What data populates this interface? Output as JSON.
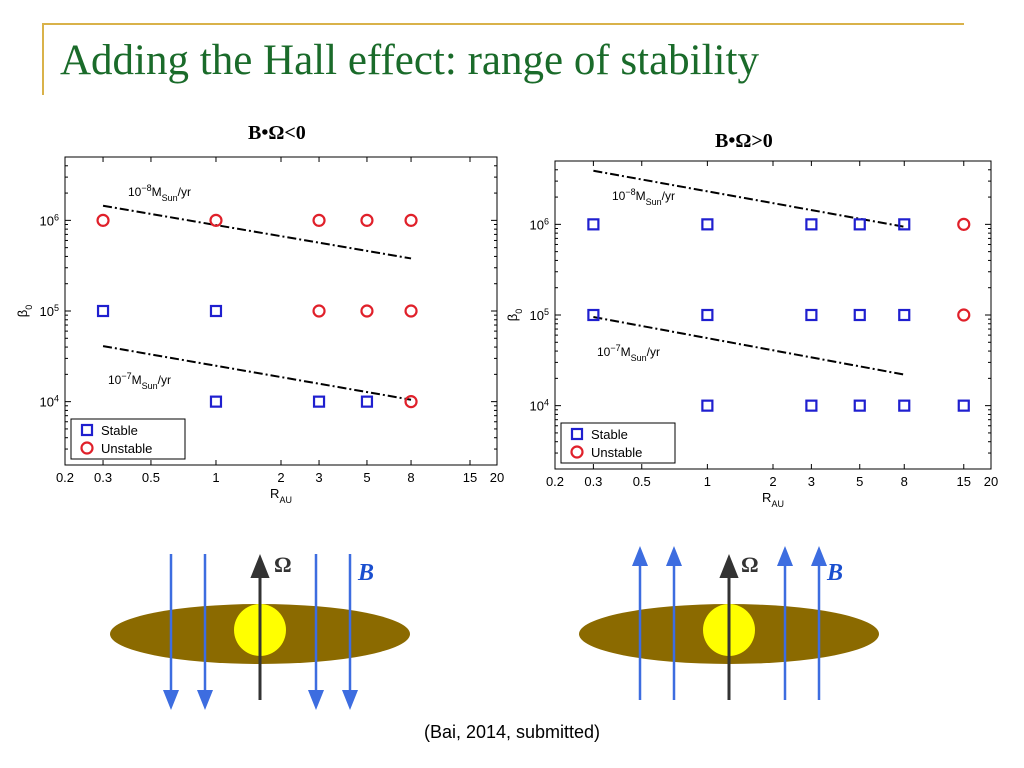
{
  "slide": {
    "title": "Adding the Hall effect: range of stability",
    "caption": "(Bai, 2014, submitted)"
  },
  "colors": {
    "title": "#1a6b2a",
    "accent_line": "#d9b24a",
    "stable": "#1f1fcf",
    "unstable": "#e0202a",
    "disk": "#8b6a00",
    "star": "#ffff00",
    "field": "#3d6de0",
    "omega_arrow": "#333333"
  },
  "chart_data": [
    {
      "type": "scatter",
      "title": "B•Ω<0",
      "xlabel_main": "R",
      "xlabel_sub": "AU",
      "ylabel_main": "β",
      "ylabel_sub": "0",
      "xscale": "log",
      "yscale": "log",
      "xlim": [
        0.2,
        20
      ],
      "ylim": [
        2000,
        5000000
      ],
      "xticks": [
        0.2,
        0.3,
        0.5,
        1,
        2,
        3,
        5,
        8,
        15,
        20
      ],
      "xtick_labels": [
        "0.2",
        "0.3",
        "0.5",
        "1",
        "2",
        "3",
        "5",
        "8",
        "15",
        "20"
      ],
      "yticks": [
        10000,
        100000,
        1000000
      ],
      "ytick_exponents": [
        "4",
        "5",
        "6"
      ],
      "legend_position": "bottom-left",
      "series": [
        {
          "name": "Stable",
          "marker": "square",
          "points": [
            [
              0.3,
              100000
            ],
            [
              1,
              100000
            ],
            [
              1,
              10000
            ],
            [
              3,
              10000
            ],
            [
              5,
              10000
            ]
          ]
        },
        {
          "name": "Unstable",
          "marker": "circle",
          "points": [
            [
              0.3,
              1000000
            ],
            [
              1,
              1000000
            ],
            [
              3,
              1000000
            ],
            [
              5,
              1000000
            ],
            [
              8,
              1000000
            ],
            [
              3,
              100000
            ],
            [
              5,
              100000
            ],
            [
              8,
              100000
            ],
            [
              8,
              10000
            ]
          ]
        }
      ],
      "lines": [
        {
          "label_base": "10",
          "label_exp": "−8",
          "label_main": "M",
          "label_sub": "Sun",
          "label_tail": "/yr",
          "x": [
            0.3,
            8
          ],
          "y": [
            1450000,
            380000
          ]
        },
        {
          "label_base": "10",
          "label_exp": "−7",
          "label_main": "M",
          "label_sub": "Sun",
          "label_tail": "/yr",
          "x": [
            0.3,
            8
          ],
          "y": [
            41000,
            10500
          ]
        }
      ]
    },
    {
      "type": "scatter",
      "title": "B•Ω>0",
      "xlabel_main": "R",
      "xlabel_sub": "AU",
      "ylabel_main": "β",
      "ylabel_sub": "0",
      "xscale": "log",
      "yscale": "log",
      "xlim": [
        0.2,
        20
      ],
      "ylim": [
        2000,
        5000000
      ],
      "xticks": [
        0.2,
        0.3,
        0.5,
        1,
        2,
        3,
        5,
        8,
        15,
        20
      ],
      "xtick_labels": [
        "0.2",
        "0.3",
        "0.5",
        "1",
        "2",
        "3",
        "5",
        "8",
        "15",
        "20"
      ],
      "yticks": [
        10000,
        100000,
        1000000
      ],
      "ytick_exponents": [
        "4",
        "5",
        "6"
      ],
      "legend_position": "bottom-left",
      "series": [
        {
          "name": "Stable",
          "marker": "square",
          "points": [
            [
              0.3,
              1000000
            ],
            [
              1,
              1000000
            ],
            [
              3,
              1000000
            ],
            [
              5,
              1000000
            ],
            [
              8,
              1000000
            ],
            [
              0.3,
              100000
            ],
            [
              1,
              100000
            ],
            [
              3,
              100000
            ],
            [
              5,
              100000
            ],
            [
              8,
              100000
            ],
            [
              1,
              10000
            ],
            [
              3,
              10000
            ],
            [
              5,
              10000
            ],
            [
              8,
              10000
            ],
            [
              15,
              10000
            ]
          ]
        },
        {
          "name": "Unstable",
          "marker": "circle",
          "points": [
            [
              15,
              1000000
            ],
            [
              15,
              100000
            ]
          ]
        }
      ],
      "lines": [
        {
          "label_base": "10",
          "label_exp": "−8",
          "label_main": "M",
          "label_sub": "Sun",
          "label_tail": "/yr",
          "x": [
            0.3,
            8
          ],
          "y": [
            3900000,
            940000
          ]
        },
        {
          "label_base": "10",
          "label_exp": "−7",
          "label_main": "M",
          "label_sub": "Sun",
          "label_tail": "/yr",
          "x": [
            0.3,
            8
          ],
          "y": [
            95000,
            22000
          ]
        }
      ]
    }
  ],
  "diagrams": [
    {
      "omega_label": "Ω",
      "field_label": "B",
      "field_direction": "down"
    },
    {
      "omega_label": "Ω",
      "field_label": "B",
      "field_direction": "up"
    }
  ]
}
